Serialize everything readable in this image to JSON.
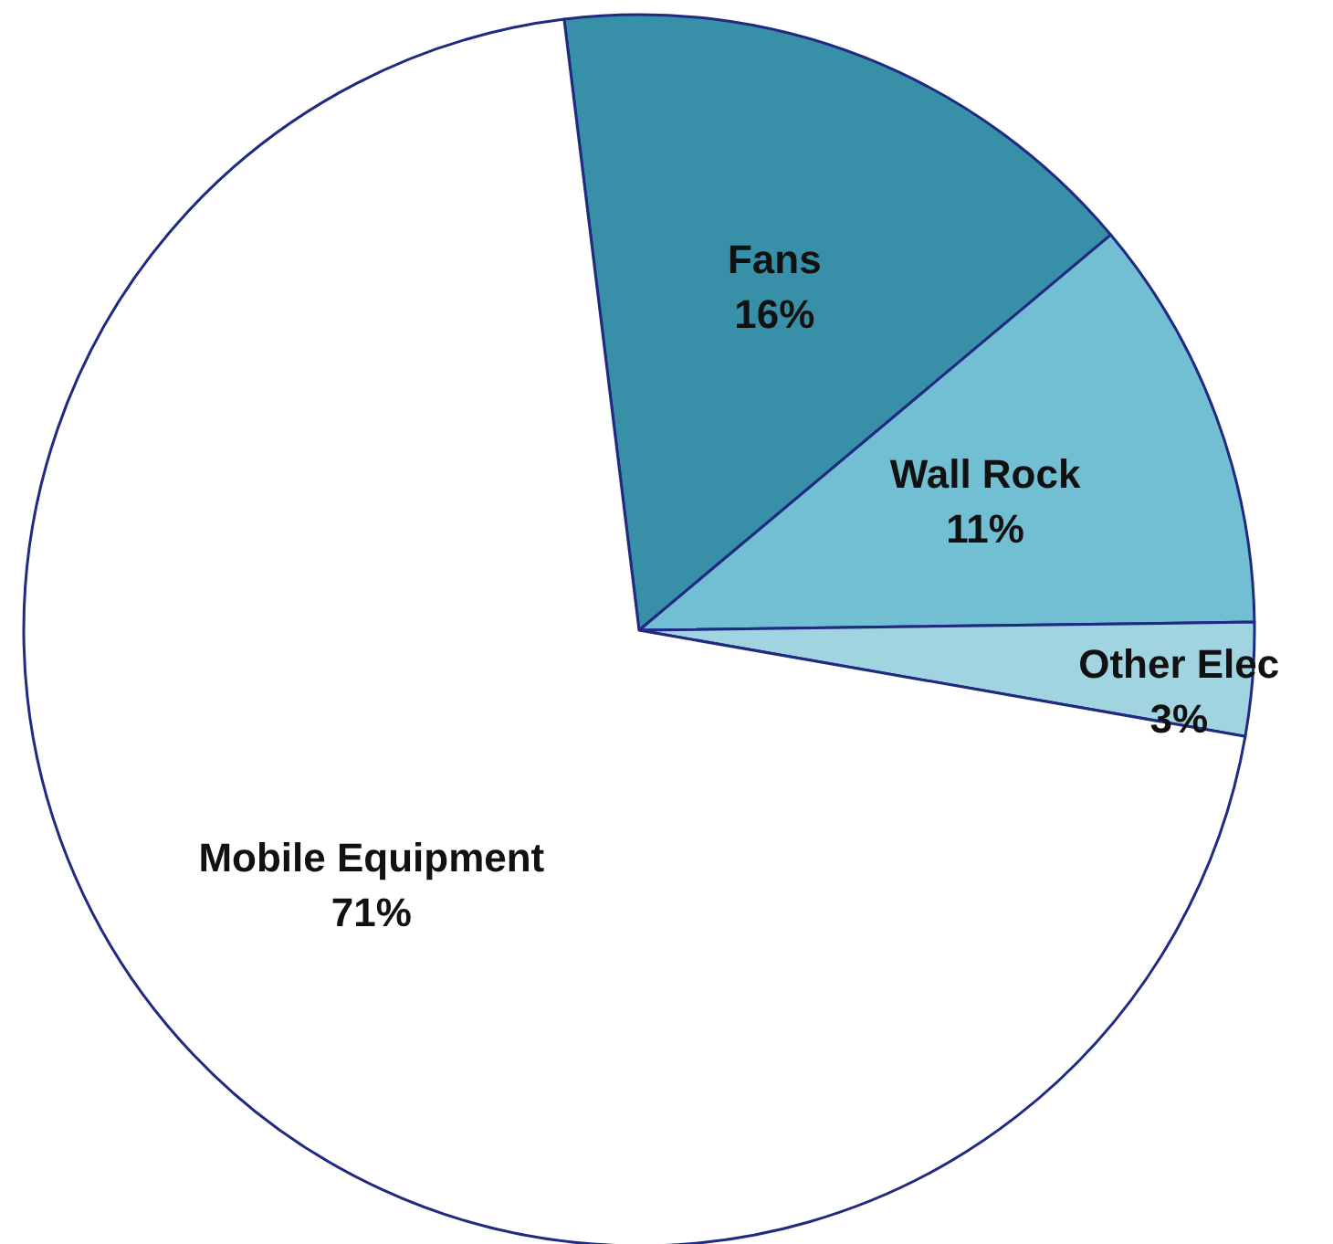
{
  "chart_data": {
    "type": "pie",
    "categories": [
      "Fans",
      "Wall Rock",
      "Other Elec",
      "Mobile Equipment"
    ],
    "values": [
      16,
      11,
      3,
      71
    ],
    "colors": [
      "#3790a8",
      "#72bed3",
      "#a0d4e0",
      "#ffffff"
    ],
    "value_labels": [
      "16%",
      "11%",
      "3%",
      "71%"
    ],
    "legend": false
  }
}
